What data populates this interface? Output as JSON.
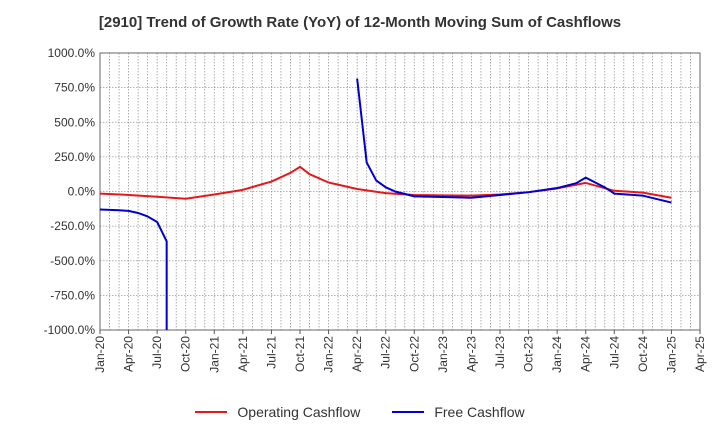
{
  "chart_data": {
    "type": "line",
    "title": "[2910]  Trend of Growth Rate (YoY) of 12-Month Moving Sum of Cashflows",
    "xlabel": "",
    "ylabel": "",
    "x_ticks": [
      "Jan-20",
      "Apr-20",
      "Jul-20",
      "Oct-20",
      "Jan-21",
      "Apr-21",
      "Jul-21",
      "Oct-21",
      "Jan-22",
      "Apr-22",
      "Jul-22",
      "Oct-22",
      "Jan-23",
      "Apr-23",
      "Jul-23",
      "Oct-23",
      "Jan-24",
      "Apr-24",
      "Jul-24",
      "Oct-24",
      "Jan-25",
      "Apr-25"
    ],
    "y_ticks": [
      "1000.0%",
      "750.0%",
      "500.0%",
      "250.0%",
      "0.0%",
      "-250.0%",
      "-500.0%",
      "-750.0%",
      "-1000.0%"
    ],
    "ylim": [
      -1000,
      1000
    ],
    "grid": true,
    "legend_position": "bottom",
    "series": [
      {
        "name": "Operating Cashflow",
        "color": "#e31a1c",
        "points": [
          [
            "Jan-20",
            -15
          ],
          [
            "Apr-20",
            -25
          ],
          [
            "Jul-20",
            -38
          ],
          [
            "Oct-20",
            -52
          ],
          [
            "Jan-21",
            -22
          ],
          [
            "Apr-21",
            12
          ],
          [
            "Jul-21",
            72
          ],
          [
            "Sep-21",
            135
          ],
          [
            "Oct-21",
            178
          ],
          [
            "Nov-21",
            125
          ],
          [
            "Jan-22",
            65
          ],
          [
            "Apr-22",
            18
          ],
          [
            "Jul-22",
            -12
          ],
          [
            "Oct-22",
            -25
          ],
          [
            "Jan-23",
            -28
          ],
          [
            "Apr-23",
            -30
          ],
          [
            "Jul-23",
            -22
          ],
          [
            "Oct-23",
            -5
          ],
          [
            "Jan-24",
            22
          ],
          [
            "Apr-24",
            62
          ],
          [
            "Jul-24",
            5
          ],
          [
            "Oct-24",
            -8
          ],
          [
            "Jan-25",
            -45
          ]
        ]
      },
      {
        "name": "Free Cashflow",
        "color": "#0000cc",
        "points": [
          [
            "Jan-20",
            -130
          ],
          [
            "Mar-20",
            -135
          ],
          [
            "Apr-20",
            -140
          ],
          [
            "May-20",
            -155
          ],
          [
            "Jun-20",
            -180
          ],
          [
            "Jul-20",
            -220
          ],
          [
            "Aug-20",
            -360
          ],
          [
            "Aug-20",
            -1000
          ],
          [
            "Apr-22",
            815
          ],
          [
            "May-22",
            210
          ],
          [
            "Jun-22",
            80
          ],
          [
            "Jul-22",
            30
          ],
          [
            "Aug-22",
            0
          ],
          [
            "Oct-22",
            -35
          ],
          [
            "Jan-23",
            -40
          ],
          [
            "Apr-23",
            -45
          ],
          [
            "Jul-23",
            -25
          ],
          [
            "Oct-23",
            -5
          ],
          [
            "Jan-24",
            25
          ],
          [
            "Mar-24",
            60
          ],
          [
            "Apr-24",
            100
          ],
          [
            "Jun-24",
            30
          ],
          [
            "Jul-24",
            -15
          ],
          [
            "Oct-24",
            -30
          ],
          [
            "Jan-25",
            -80
          ]
        ]
      }
    ]
  }
}
